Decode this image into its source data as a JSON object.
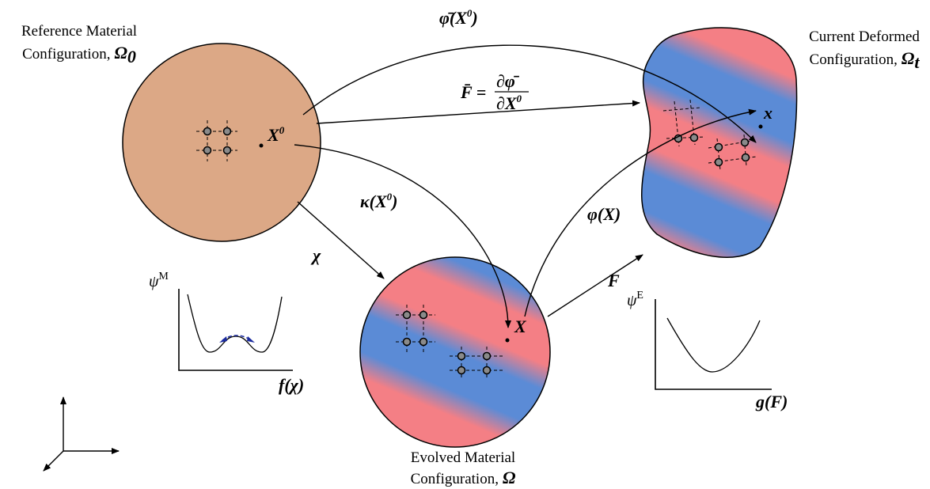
{
  "reference": {
    "line1": "Reference Material",
    "line2": "Configuration,",
    "symbol": "Ω",
    "sub": "0"
  },
  "deformed": {
    "line1": "Current Deformed",
    "line2": "Configuration,",
    "symbol": "Ω",
    "sub": "t"
  },
  "evolved": {
    "line1": "Evolved Material",
    "line2": "Configuration,",
    "symbol": "Ω"
  },
  "points": {
    "reference": {
      "base": "X",
      "sup": "0"
    },
    "deformed": "x",
    "evolved": "X"
  },
  "maps": {
    "phi_bar": {
      "base": "φ̄(X",
      "sup": "0",
      "close": ")"
    },
    "F_bar": {
      "lhs": "F̄ =",
      "numerator": "∂φ̄",
      "denominator": "∂X",
      "denominator_sup": "0"
    },
    "kappa": {
      "base": "κ(X",
      "sup": "0",
      "close": ")"
    },
    "phi": "φ(X)",
    "chi": "χ",
    "F": "F"
  },
  "plots": {
    "material": {
      "symbol": "ψ",
      "sup": "M",
      "xlabel": "f(χ)"
    },
    "elastic": {
      "symbol": "ψ",
      "sup": "E",
      "xlabel": "g(F)"
    }
  }
}
